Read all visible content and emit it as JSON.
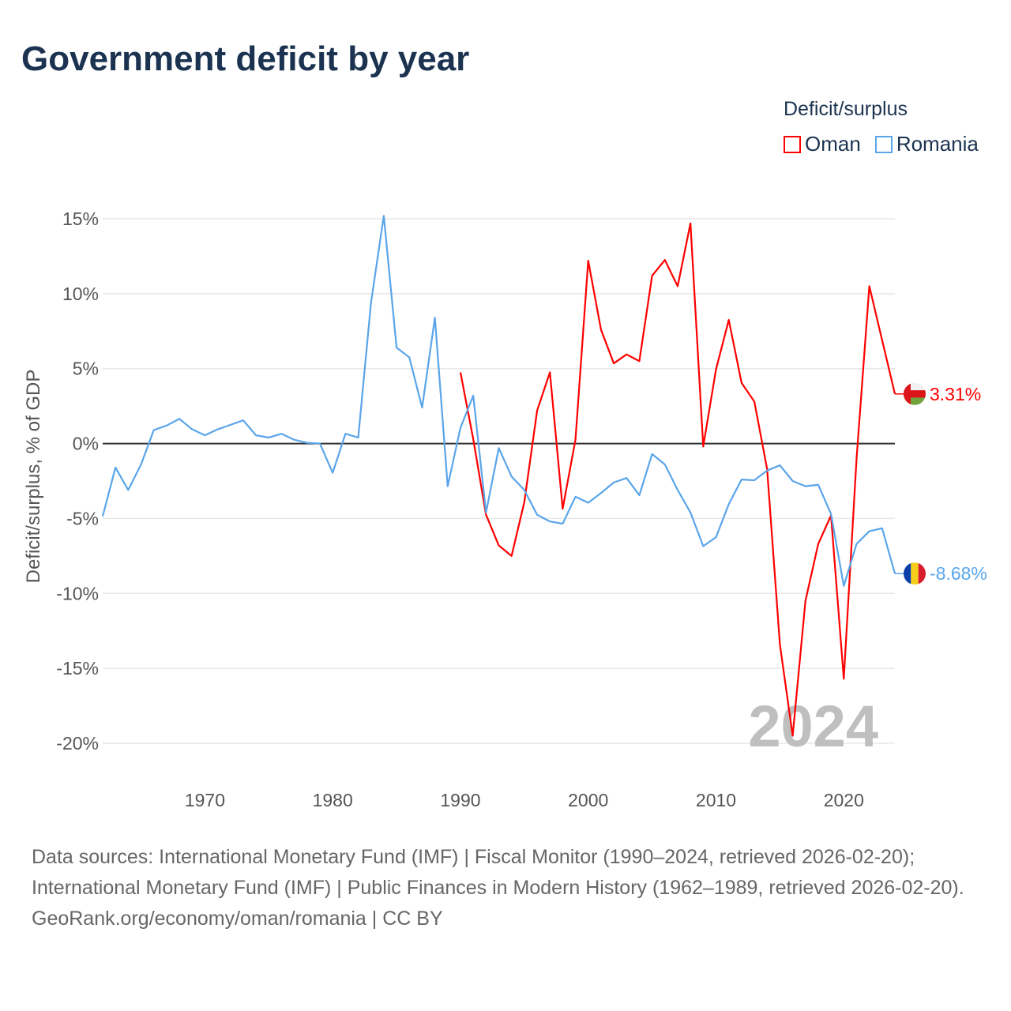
{
  "title": "Government deficit by year",
  "legend": {
    "title": "Deficit/surplus",
    "items": [
      {
        "name": "Oman",
        "color": "#ff0000"
      },
      {
        "name": "Romania",
        "color": "#5aa5ea"
      }
    ]
  },
  "watermark_year": "2024",
  "sources": "Data sources: International Monetary Fund (IMF) | Fiscal Monitor (1990–2024, retrieved 2026-02-20); International Monetary Fund (IMF) | Public Finances in Modern History (1962–1989, retrieved 2026-02-20).",
  "footer": "GeoRank.org/economy/oman/romania | CC BY",
  "chart_data": {
    "type": "line",
    "title": "Government deficit by year",
    "ylabel": "Deficit/surplus, % of GDP",
    "xlabel": "",
    "xlim": [
      1962,
      2024
    ],
    "ylim": [
      -20,
      15
    ],
    "x_ticks": [
      1970,
      1980,
      1990,
      2000,
      2010,
      2020
    ],
    "y_ticks": [
      15,
      10,
      5,
      0,
      -5,
      -10,
      -15,
      -20
    ],
    "y_tick_labels": [
      "15%",
      "10%",
      "5%",
      "0%",
      "-5%",
      "-10%",
      "-15%",
      "-20%"
    ],
    "grid": true,
    "legend_position": "top-right",
    "series": [
      {
        "name": "Oman",
        "color": "#ff0000",
        "end_label": "3.31%",
        "start_year": 1990,
        "values": [
          4.75,
          0.3,
          -4.75,
          -6.8,
          -7.5,
          -3.9,
          2.2,
          4.75,
          -4.35,
          0.25,
          12.2,
          7.6,
          5.35,
          5.95,
          5.5,
          11.2,
          12.25,
          10.5,
          14.7,
          -0.2,
          4.95,
          8.25,
          4.05,
          2.8,
          -1.7,
          -13.4,
          -19.5,
          -10.5,
          -6.7,
          -4.8,
          -15.7,
          -1.0,
          10.5,
          6.9,
          3.31
        ]
      },
      {
        "name": "Romania",
        "color": "#5aa5ea",
        "end_label": "-8.68%",
        "start_year": 1962,
        "values": [
          -4.86,
          -1.6,
          -3.1,
          -1.4,
          0.9,
          1.2,
          1.65,
          0.95,
          0.55,
          0.95,
          1.25,
          1.55,
          0.55,
          0.4,
          0.65,
          0.25,
          0.05,
          0,
          -1.95,
          0.65,
          0.4,
          9.4,
          15.2,
          6.4,
          5.75,
          2.4,
          8.4,
          -2.85,
          1.05,
          3.2,
          -4.6,
          -0.3,
          -2.2,
          -3.1,
          -4.75,
          -5.2,
          -5.35,
          -3.55,
          -3.95,
          -3.3,
          -2.6,
          -2.3,
          -3.45,
          -0.7,
          -1.4,
          -3.1,
          -4.6,
          -6.85,
          -6.25,
          -4.05,
          -2.4,
          -2.45,
          -1.8,
          -1.45,
          -2.5,
          -2.85,
          -2.75,
          -4.7,
          -9.5,
          -6.7,
          -5.85,
          -5.65,
          -8.68
        ]
      }
    ]
  }
}
